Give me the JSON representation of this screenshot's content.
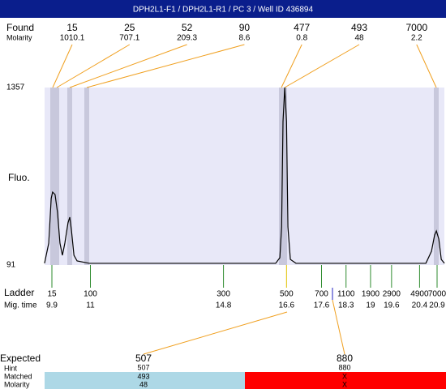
{
  "header": {
    "title": "DPH2L1-F1 / DPH2L1-R1 / PC 3 / Well ID 436894"
  },
  "found": {
    "label": "Found",
    "molarity_label": "Molarity",
    "peaks": [
      {
        "size": 15,
        "molarity": 1010.1
      },
      {
        "size": 25,
        "molarity": 707.1
      },
      {
        "size": 52,
        "molarity": 209.3
      },
      {
        "size": 90,
        "molarity": 8.6
      },
      {
        "size": 477,
        "molarity": 0.8
      },
      {
        "size": 493,
        "molarity": 48
      },
      {
        "size": 7000,
        "molarity": 2.2
      }
    ]
  },
  "plot": {
    "y_label": "Fluo.",
    "ylim": [
      91,
      1357
    ],
    "yticks": [
      91,
      1357
    ],
    "trace": {
      "time": [
        9.69,
        9.81,
        9.88,
        9.92,
        9.99,
        10.06,
        10.13,
        10.2,
        10.27,
        10.36,
        10.41,
        10.46,
        10.53,
        10.62,
        10.97,
        16.29,
        16.41,
        16.46,
        16.5,
        16.55,
        16.6,
        16.64,
        16.71,
        16.87,
        20.58,
        20.74,
        20.83,
        20.88,
        20.95,
        21.02,
        21.11
      ],
      "fluo": [
        103,
        247,
        565,
        611,
        594,
        467,
        247,
        160,
        247,
        392,
        432,
        334,
        160,
        120,
        103,
        103,
        143,
        363,
        1114,
        1357,
        1114,
        363,
        131,
        103,
        103,
        189,
        305,
        334,
        276,
        131,
        103
      ]
    }
  },
  "ladder": {
    "label": "Ladder",
    "time_label": "Mig. time",
    "bands": [
      {
        "size": 15,
        "time": 9.9
      },
      {
        "size": 100,
        "time": 11
      },
      {
        "size": 300,
        "time": 14.8
      },
      {
        "size": 500,
        "time": 16.6
      },
      {
        "size": 700,
        "time": 17.6
      },
      {
        "size": 1100,
        "time": 18.3
      },
      {
        "size": 1900,
        "time": 19
      },
      {
        "size": 2900,
        "time": 19.6
      },
      {
        "size": 4900,
        "time": 20.4
      },
      {
        "size": 7000,
        "time": 20.9
      }
    ]
  },
  "expected": {
    "label": "Expected",
    "hint_label": "Hint",
    "matched_label": "Matched",
    "molarity_label": "Molarity",
    "items": [
      {
        "size": 507,
        "hint": 507,
        "matched": 493,
        "molarity": 48
      },
      {
        "size": 880,
        "hint": 880,
        "matched": "X",
        "molarity": "X"
      }
    ]
  }
}
